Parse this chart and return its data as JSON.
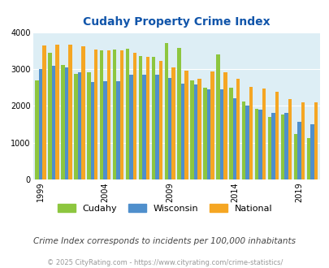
{
  "title": "Cudahy Property Crime Index",
  "subtitle": "Crime Index corresponds to incidents per 100,000 inhabitants",
  "footer": "© 2025 CityRating.com - https://www.cityrating.com/crime-statistics/",
  "years": [
    1999,
    2000,
    2001,
    2002,
    2003,
    2004,
    2005,
    2006,
    2007,
    2008,
    2009,
    2010,
    2011,
    2012,
    2013,
    2014,
    2015,
    2016,
    2017,
    2018,
    2019,
    2020
  ],
  "cudahy": [
    2680,
    3450,
    3100,
    2860,
    2920,
    3500,
    3520,
    3560,
    3350,
    3320,
    3700,
    3580,
    2700,
    2500,
    3400,
    2490,
    2110,
    1930,
    1700,
    1760,
    1240,
    1120
  ],
  "wisconsin": [
    3000,
    3080,
    3050,
    2920,
    2650,
    2670,
    2670,
    2840,
    2840,
    2840,
    2760,
    2600,
    2570,
    2450,
    2450,
    2200,
    2000,
    1900,
    1820,
    1800,
    1570,
    1490
  ],
  "national": [
    3630,
    3660,
    3650,
    3620,
    3520,
    3510,
    3510,
    3440,
    3340,
    3220,
    3040,
    2960,
    2740,
    2940,
    2910,
    2740,
    2510,
    2470,
    2390,
    2180,
    2100,
    2100
  ],
  "cudahy_color": "#8dc63f",
  "wisconsin_color": "#4f8fcc",
  "national_color": "#f5a623",
  "bg_color": "#ddeef5",
  "title_color": "#1155aa",
  "subtitle_color": "#444444",
  "footer_color": "#999999",
  "ylim": [
    0,
    4000
  ],
  "yticks": [
    0,
    1000,
    2000,
    3000,
    4000
  ],
  "xlabel_ticks": [
    1999,
    2004,
    2009,
    2014,
    2019
  ]
}
